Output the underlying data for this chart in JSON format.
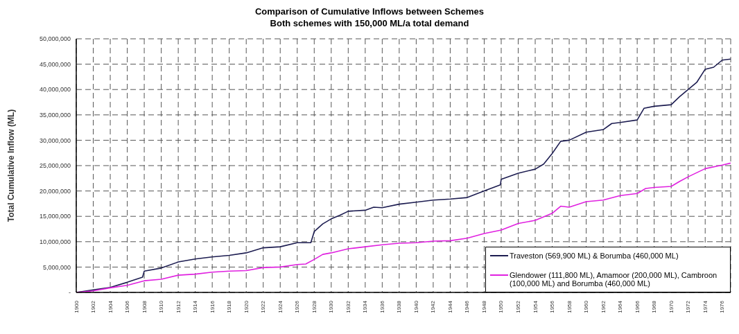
{
  "chart_data": {
    "type": "line",
    "title": "Comparison of Cumulative Inflows between Schemes",
    "subtitle": "Both schemes with 150,000 ML/a total demand",
    "ylabel": "Total Cumulative Inflow (ML)",
    "legend": "bottom right",
    "grid": true,
    "marker": "none",
    "line_style": "solid",
    "xlim": [
      1900,
      1977
    ],
    "xticks": [
      1900,
      1902,
      1904,
      1906,
      1908,
      1910,
      1912,
      1914,
      1916,
      1918,
      1920,
      1922,
      1924,
      1926,
      1928,
      1930,
      1932,
      1934,
      1936,
      1938,
      1940,
      1942,
      1944,
      1946,
      1948,
      1950,
      1952,
      1954,
      1956,
      1958,
      1960,
      1962,
      1964,
      1966,
      1968,
      1970,
      1972,
      1974,
      1976
    ],
    "ylim": [
      0,
      50000000
    ],
    "yticks": [
      {
        "value": 0,
        "label": "-"
      },
      {
        "value": 5000000,
        "label": "5,000,000"
      },
      {
        "value": 10000000,
        "label": "10,000,000"
      },
      {
        "value": 15000000,
        "label": "15,000,000"
      },
      {
        "value": 20000000,
        "label": "20,000,000"
      },
      {
        "value": 25000000,
        "label": "25,000,000"
      },
      {
        "value": 30000000,
        "label": "30,000,000"
      },
      {
        "value": 35000000,
        "label": "35,000,000"
      },
      {
        "value": 40000000,
        "label": "40,000,000"
      },
      {
        "value": 45000000,
        "label": "45,000,000"
      },
      {
        "value": 50000000,
        "label": "50,000,000"
      }
    ],
    "series": [
      {
        "name": "Traveston (569,900 ML) & Borumba (460,000 ML)",
        "color": "#1c1c50",
        "x": [
          1900,
          1902,
          1904,
          1906,
          1907.8,
          1908,
          1910,
          1912,
          1914,
          1916,
          1918,
          1920,
          1922,
          1924,
          1926,
          1927.6,
          1928,
          1929,
          1930,
          1931,
          1932,
          1934,
          1935,
          1936,
          1938,
          1940,
          1942,
          1944,
          1946,
          1948,
          1949.9,
          1950,
          1952,
          1954,
          1955,
          1956,
          1957,
          1958,
          1960,
          1962,
          1963,
          1964,
          1966,
          1966.8,
          1968,
          1970,
          1971,
          1972,
          1973,
          1974,
          1975,
          1976,
          1977
        ],
        "values": [
          0,
          500000,
          1000000,
          2000000,
          3000000,
          4200000,
          4800000,
          6000000,
          6600000,
          7000000,
          7300000,
          7800000,
          8800000,
          9000000,
          9800000,
          9800000,
          12000000,
          13500000,
          14500000,
          15200000,
          16000000,
          16200000,
          16800000,
          16700000,
          17400000,
          17800000,
          18200000,
          18400000,
          18700000,
          20000000,
          21200000,
          22300000,
          23500000,
          24300000,
          25300000,
          27400000,
          29800000,
          30000000,
          31600000,
          32100000,
          33300000,
          33500000,
          34000000,
          36300000,
          36700000,
          37000000,
          38600000,
          40000000,
          41400000,
          44000000,
          44400000,
          45800000,
          46000000
        ]
      },
      {
        "name": "Glendower (111,800 ML), Amamoor (200,000 ML), Cambroon (100,000 ML) and Borumba (460,000 ML)",
        "color": "#e020e0",
        "x": [
          1900,
          1902,
          1904,
          1906,
          1908,
          1910,
          1912,
          1914,
          1916,
          1918,
          1920,
          1922,
          1924,
          1926,
          1927,
          1928,
          1929,
          1930,
          1932,
          1933,
          1934,
          1936,
          1938,
          1940,
          1942,
          1944,
          1946,
          1948,
          1950,
          1952,
          1954,
          1956,
          1957,
          1958,
          1960,
          1962,
          1964,
          1966,
          1967,
          1968,
          1970,
          1971,
          1972,
          1974,
          1976,
          1977
        ],
        "values": [
          0,
          300000,
          900000,
          1400000,
          2300000,
          2600000,
          3400000,
          3600000,
          4000000,
          4200000,
          4300000,
          4900000,
          5000000,
          5500000,
          5600000,
          6500000,
          7500000,
          7800000,
          8600000,
          8800000,
          9000000,
          9400000,
          9700000,
          9800000,
          10100000,
          10200000,
          10700000,
          11600000,
          12300000,
          13600000,
          14200000,
          15600000,
          17000000,
          16800000,
          17900000,
          18200000,
          19100000,
          19500000,
          20500000,
          20700000,
          20900000,
          21900000,
          22800000,
          24400000,
          25100000,
          25500000
        ]
      }
    ]
  }
}
